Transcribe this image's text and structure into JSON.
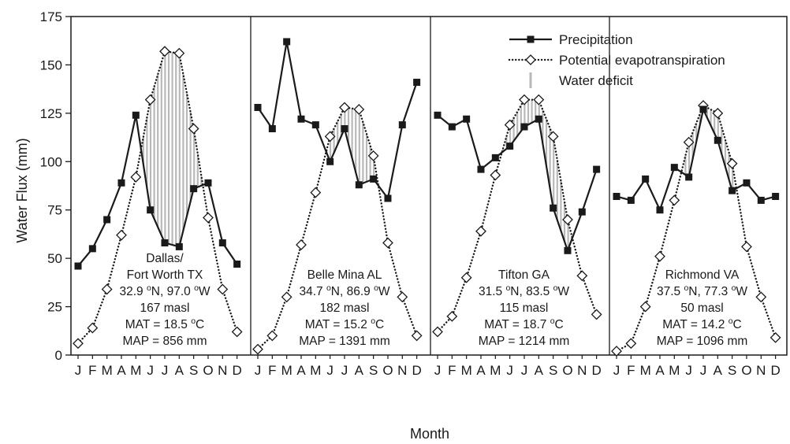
{
  "chart_data": {
    "type": "line",
    "ylabel": "Water Flux (mm)",
    "xlabel": "Month",
    "ylim": [
      0,
      175
    ],
    "yticks": [
      0,
      25,
      50,
      75,
      100,
      125,
      150,
      175
    ],
    "month_labels": [
      "J",
      "F",
      "M",
      "A",
      "M",
      "J",
      "J",
      "A",
      "S",
      "O",
      "N",
      "D"
    ],
    "legend": {
      "position": "top-right",
      "items": [
        {
          "key": "precipitation",
          "label": "Precipitation",
          "marker": "filled-square",
          "line": "solid"
        },
        {
          "key": "pet",
          "label": "Potential evapotranspiration",
          "marker": "open-diamond",
          "line": "dotted"
        },
        {
          "key": "deficit",
          "label": "Water deficit",
          "marker": "gray-bar",
          "line": "none"
        }
      ]
    },
    "colors": {
      "precipitation": "#1a1a1a",
      "pet": "#1a1a1a",
      "deficit": "#b8b8b8"
    },
    "panels": [
      {
        "site": [
          "Dallas/",
          "Fort Worth TX"
        ],
        "coords": {
          "lat": "32.9",
          "lat_dir": "N",
          "lon": "97.0",
          "lon_dir": "W"
        },
        "elev": "167 masl",
        "mat": "18.5",
        "map": "MAP = 856 mm",
        "precipitation": [
          46,
          55,
          70,
          89,
          124,
          75,
          58,
          56,
          86,
          89,
          58,
          47
        ],
        "pet": [
          6,
          14,
          34,
          62,
          92,
          132,
          157,
          156,
          117,
          71,
          34,
          12
        ]
      },
      {
        "site": [
          "Belle Mina AL"
        ],
        "coords": {
          "lat": "34.7",
          "lat_dir": "N",
          "lon": "86.9",
          "lon_dir": "W"
        },
        "elev": "182 masl",
        "mat": "15.2",
        "map": "MAP = 1391 mm",
        "precipitation": [
          128,
          117,
          162,
          122,
          119,
          100,
          117,
          88,
          91,
          81,
          119,
          141
        ],
        "pet": [
          3,
          10,
          30,
          57,
          84,
          113,
          128,
          127,
          103,
          58,
          30,
          10
        ]
      },
      {
        "site": [
          "Tifton GA"
        ],
        "coords": {
          "lat": "31.5",
          "lat_dir": "N",
          "lon": "83.5",
          "lon_dir": "W"
        },
        "elev": "115 masl",
        "mat": "18.7",
        "map": "MAP = 1214 mm",
        "precipitation": [
          124,
          118,
          122,
          96,
          102,
          108,
          118,
          122,
          76,
          54,
          74,
          96
        ],
        "pet": [
          12,
          20,
          40,
          64,
          93,
          119,
          132,
          132,
          113,
          70,
          41,
          21
        ]
      },
      {
        "site": [
          "Richmond VA"
        ],
        "coords": {
          "lat": "37.5",
          "lat_dir": "N",
          "lon": "77.3",
          "lon_dir": "W"
        },
        "elev": "50 masl",
        "mat": "14.2",
        "map": "MAP = 1096 mm",
        "precipitation": [
          82,
          80,
          91,
          75,
          97,
          92,
          127,
          111,
          85,
          89,
          80,
          82
        ],
        "pet": [
          2,
          6,
          25,
          51,
          80,
          110,
          129,
          125,
          99,
          56,
          30,
          9
        ]
      }
    ]
  }
}
